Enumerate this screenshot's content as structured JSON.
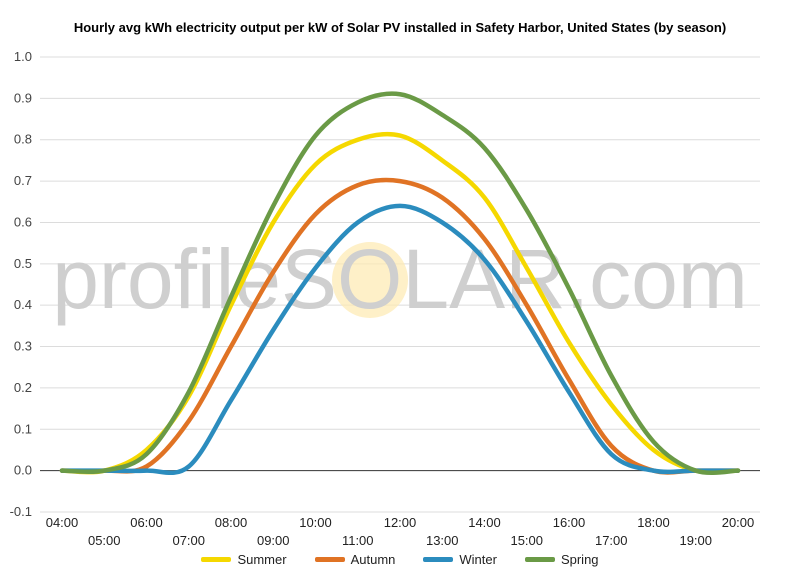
{
  "chart_data": {
    "type": "line",
    "title": "Hourly avg kWh electricity output per kW of Solar PV installed in Safety Harbor, United States (by season)",
    "xlabel": "",
    "ylabel": "",
    "ylim": [
      -0.1,
      1.0
    ],
    "yticks": [
      "-0.1",
      "0.0",
      "0.1",
      "0.2",
      "0.3",
      "0.4",
      "0.5",
      "0.6",
      "0.7",
      "0.8",
      "0.9",
      "1.0"
    ],
    "x": [
      "04:00",
      "05:00",
      "06:00",
      "07:00",
      "08:00",
      "09:00",
      "10:00",
      "11:00",
      "12:00",
      "13:00",
      "14:00",
      "15:00",
      "16:00",
      "17:00",
      "18:00",
      "19:00",
      "20:00"
    ],
    "grid": "horizontal",
    "legend_position": "bottom",
    "watermark": "profileSOLAR.com",
    "series": [
      {
        "name": "Summer",
        "color": "#f5d800",
        "values": [
          0.0,
          0.0,
          0.05,
          0.18,
          0.4,
          0.6,
          0.74,
          0.8,
          0.81,
          0.75,
          0.66,
          0.49,
          0.31,
          0.16,
          0.05,
          0.0,
          0.0
        ]
      },
      {
        "name": "Autumn",
        "color": "#e07324",
        "values": [
          0.0,
          0.0,
          0.01,
          0.12,
          0.3,
          0.48,
          0.62,
          0.69,
          0.7,
          0.66,
          0.56,
          0.4,
          0.22,
          0.06,
          0.0,
          0.0,
          0.0
        ]
      },
      {
        "name": "Winter",
        "color": "#2b8cbe",
        "values": [
          0.0,
          0.0,
          0.0,
          0.01,
          0.17,
          0.34,
          0.49,
          0.6,
          0.64,
          0.6,
          0.51,
          0.36,
          0.19,
          0.04,
          0.0,
          0.0,
          0.0
        ]
      },
      {
        "name": "Spring",
        "color": "#6a9a46",
        "values": [
          0.0,
          0.0,
          0.04,
          0.19,
          0.42,
          0.64,
          0.81,
          0.89,
          0.91,
          0.86,
          0.78,
          0.63,
          0.44,
          0.23,
          0.07,
          0.0,
          0.0
        ]
      }
    ]
  }
}
